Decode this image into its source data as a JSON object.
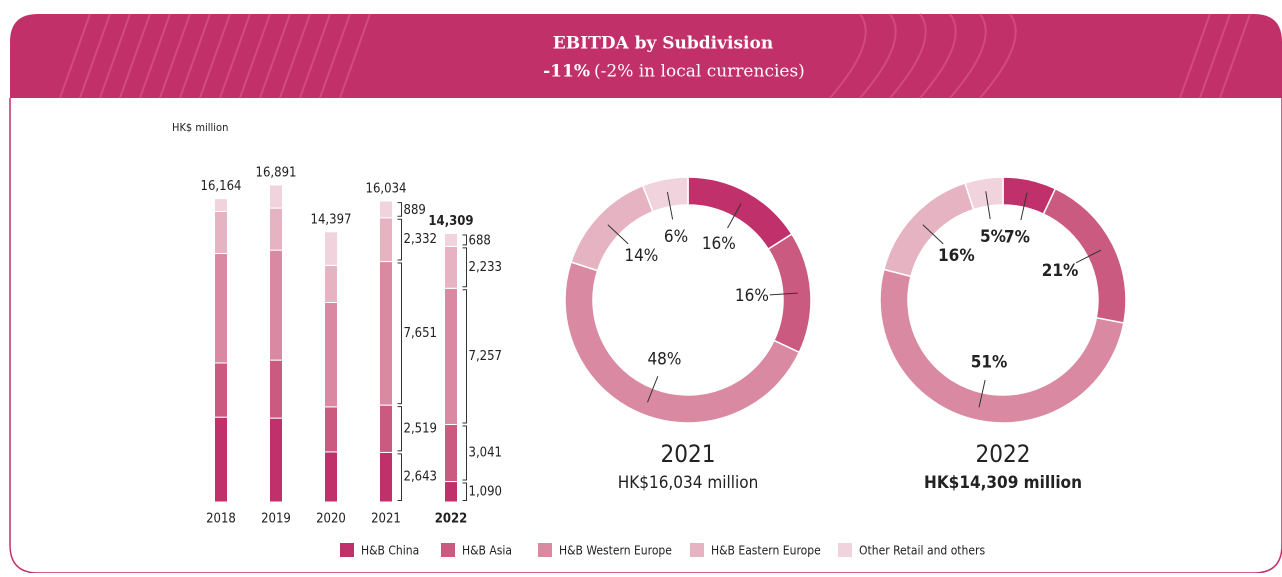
{
  "header": {
    "title": "EBITDA by Subdivision",
    "change": "-11%",
    "change_note": "(-2% in local currencies)"
  },
  "chart_data": [
    {
      "type": "bar",
      "stacked": true,
      "y_label": "HK$ million",
      "categories": [
        "2018",
        "2019",
        "2020",
        "2021",
        "2022"
      ],
      "totals": [
        16164,
        16891,
        14397,
        16034,
        14309
      ],
      "total_labels": [
        "16,164",
        "16,891",
        "14,397",
        "16,034",
        "14,309"
      ],
      "series": [
        {
          "name": "H&B China",
          "color": "#c0306a",
          "values": [
            4520,
            4470,
            2670,
            2643,
            1090
          ],
          "value_labels": [
            null,
            null,
            null,
            "2,643",
            "1,090"
          ]
        },
        {
          "name": "H&B Asia",
          "color": "#cb5a80",
          "values": [
            2890,
            3090,
            2400,
            2519,
            3041
          ],
          "value_labels": [
            null,
            null,
            null,
            "2,519",
            "3,041"
          ]
        },
        {
          "name": "H&B Western Europe",
          "color": "#d98aa2",
          "values": [
            5830,
            5860,
            5560,
            7651,
            7257
          ],
          "value_labels": [
            null,
            null,
            null,
            "7,651",
            "7,257"
          ]
        },
        {
          "name": "H&B Eastern Europe",
          "color": "#e6b3c3",
          "values": [
            2240,
            2240,
            1980,
            2332,
            2233
          ],
          "value_labels": [
            null,
            null,
            null,
            "2,332",
            "2,233"
          ]
        },
        {
          "name": "Other Retail and others",
          "color": "#f0d3dc",
          "values": [
            684,
            1231,
            1787,
            889,
            688
          ],
          "value_labels": [
            null,
            null,
            null,
            "889",
            "688"
          ]
        }
      ]
    },
    {
      "type": "pie",
      "title": "2021",
      "subtitle": "HK$16,034 million",
      "colors": [
        "#c0306a",
        "#cb5a80",
        "#d98aa2",
        "#e6b3c3",
        "#f0d3dc"
      ],
      "values": [
        16,
        16,
        48,
        14,
        6
      ],
      "value_labels": [
        "16%",
        "16%",
        "48%",
        "14%",
        "6%"
      ]
    },
    {
      "type": "pie",
      "title": "2022",
      "subtitle": "HK$14,309 million",
      "colors": [
        "#c0306a",
        "#cb5a80",
        "#d98aa2",
        "#e6b3c3",
        "#f0d3dc"
      ],
      "values": [
        7,
        21,
        51,
        16,
        5
      ],
      "value_labels": [
        "7%",
        "21%",
        "51%",
        "16%",
        "5%"
      ]
    }
  ]
}
